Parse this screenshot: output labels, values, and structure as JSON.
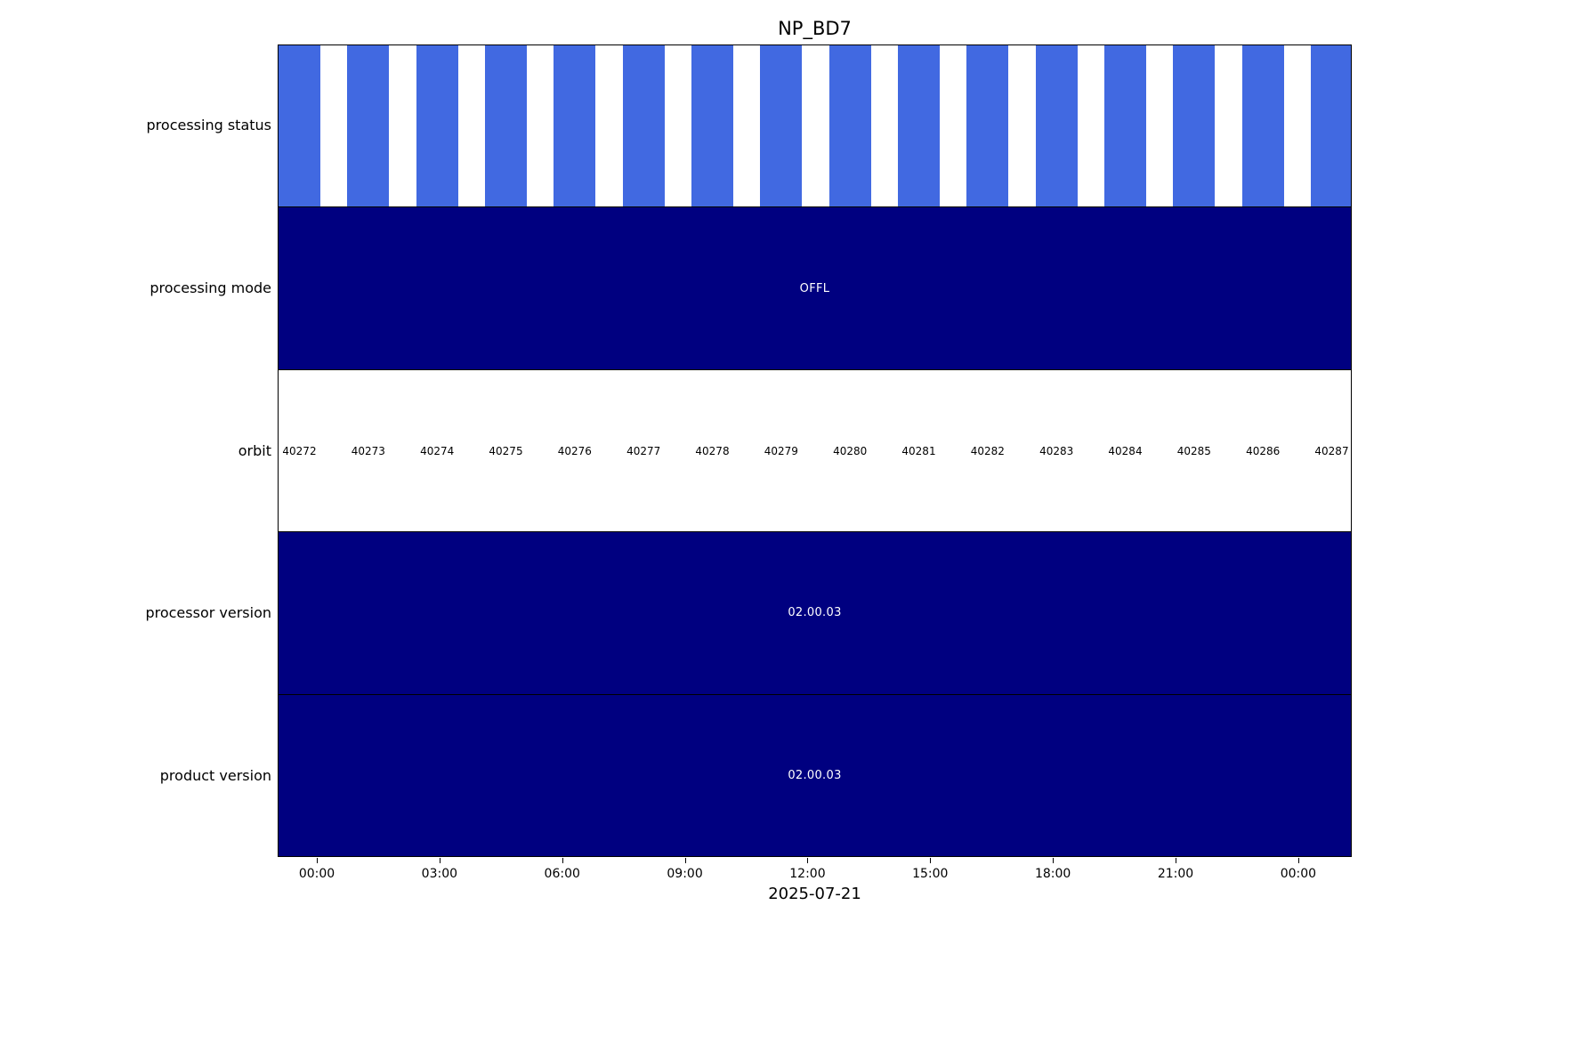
{
  "chart_data": {
    "type": "timeline-status-bars",
    "title": "NP_BD7",
    "xlabel": "2025-07-21",
    "x_ticks": [
      "00:00",
      "03:00",
      "06:00",
      "09:00",
      "12:00",
      "15:00",
      "18:00",
      "21:00",
      "00:00"
    ],
    "grid": false,
    "rows": [
      {
        "label": "processing status",
        "kind": "striped",
        "color": "#4169e1",
        "bar_count": 16
      },
      {
        "label": "processing mode",
        "kind": "solid",
        "color": "#000080",
        "value": "OFFL"
      },
      {
        "label": "orbit",
        "kind": "text",
        "values": [
          "40272",
          "40273",
          "40274",
          "40275",
          "40276",
          "40277",
          "40278",
          "40279",
          "40280",
          "40281",
          "40282",
          "40283",
          "40284",
          "40285",
          "40286",
          "40287"
        ]
      },
      {
        "label": "processor version",
        "kind": "solid",
        "color": "#000080",
        "value": "02.00.03"
      },
      {
        "label": "product version",
        "kind": "solid",
        "color": "#000080",
        "value": "02.00.03"
      }
    ]
  }
}
